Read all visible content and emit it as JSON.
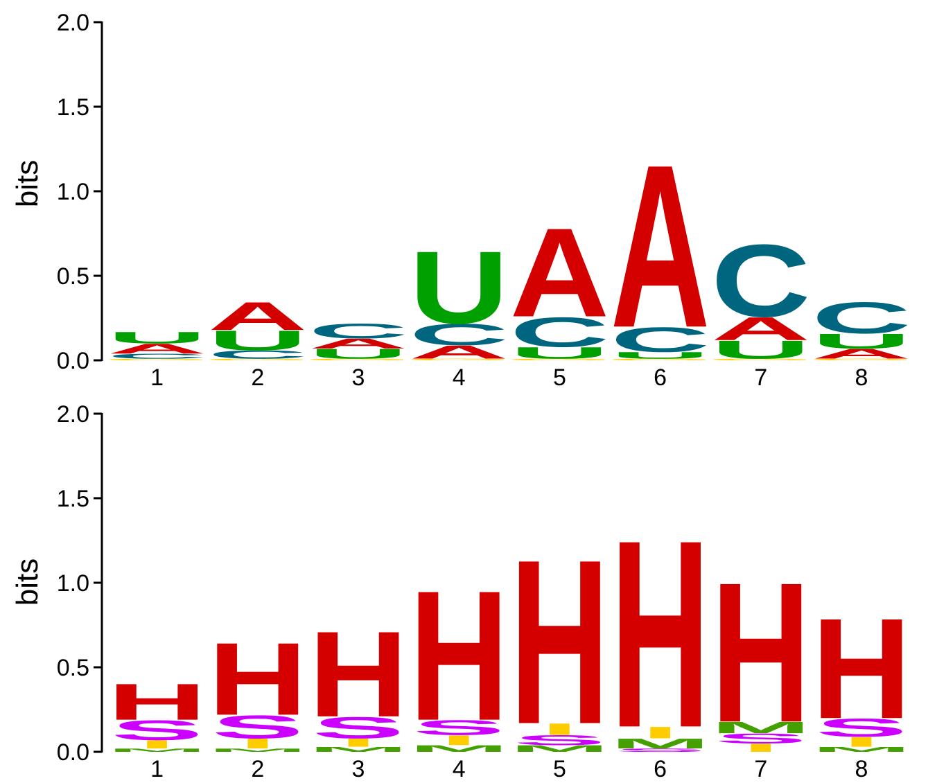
{
  "chart_data": [
    {
      "type": "sequence-logo",
      "ylabel": "bits",
      "ylim": [
        0,
        2.0
      ],
      "yticks": [
        "0.0",
        "0.5",
        "1.0",
        "1.5",
        "2.0"
      ],
      "xticks": [
        "1",
        "2",
        "3",
        "4",
        "5",
        "6",
        "7",
        "8"
      ],
      "colors": {
        "A": "#d40000",
        "C": "#006680",
        "G": "#ffcc00",
        "U": "#00a000"
      },
      "positions": [
        {
          "stack": [
            {
              "letter": "G",
              "bits": 0.01
            },
            {
              "letter": "C",
              "bits": 0.03
            },
            {
              "letter": "A",
              "bits": 0.06
            },
            {
              "letter": "U",
              "bits": 0.07
            }
          ]
        },
        {
          "stack": [
            {
              "letter": "G",
              "bits": 0.01
            },
            {
              "letter": "C",
              "bits": 0.05
            },
            {
              "letter": "U",
              "bits": 0.12
            },
            {
              "letter": "A",
              "bits": 0.17
            }
          ]
        },
        {
          "stack": [
            {
              "letter": "G",
              "bits": 0.01
            },
            {
              "letter": "U",
              "bits": 0.06
            },
            {
              "letter": "A",
              "bits": 0.06
            },
            {
              "letter": "C",
              "bits": 0.09
            }
          ]
        },
        {
          "stack": [
            {
              "letter": "G",
              "bits": 0.01
            },
            {
              "letter": "A",
              "bits": 0.08
            },
            {
              "letter": "C",
              "bits": 0.13
            },
            {
              "letter": "U",
              "bits": 0.44
            }
          ]
        },
        {
          "stack": [
            {
              "letter": "G",
              "bits": 0.01
            },
            {
              "letter": "U",
              "bits": 0.07
            },
            {
              "letter": "C",
              "bits": 0.18
            },
            {
              "letter": "A",
              "bits": 0.54
            }
          ]
        },
        {
          "stack": [
            {
              "letter": "G",
              "bits": 0.01
            },
            {
              "letter": "U",
              "bits": 0.04
            },
            {
              "letter": "C",
              "bits": 0.15
            },
            {
              "letter": "A",
              "bits": 0.99
            }
          ]
        },
        {
          "stack": [
            {
              "letter": "G",
              "bits": 0.01
            },
            {
              "letter": "U",
              "bits": 0.11
            },
            {
              "letter": "A",
              "bits": 0.14
            },
            {
              "letter": "C",
              "bits": 0.44
            }
          ]
        },
        {
          "stack": [
            {
              "letter": "G",
              "bits": 0.01
            },
            {
              "letter": "A",
              "bits": 0.06
            },
            {
              "letter": "U",
              "bits": 0.09
            },
            {
              "letter": "C",
              "bits": 0.19
            }
          ]
        }
      ]
    },
    {
      "type": "sequence-logo",
      "ylabel": "bits",
      "ylim": [
        0,
        2.0
      ],
      "yticks": [
        "0.0",
        "0.5",
        "1.0",
        "1.5",
        "2.0"
      ],
      "xticks": [
        "1",
        "2",
        "3",
        "4",
        "5",
        "6",
        "7",
        "8"
      ],
      "colors": {
        "H": "#d40000",
        "S": "#cc00ff",
        "I": "#ffcc00",
        "M": "#44a000"
      },
      "positions": [
        {
          "stack": [
            {
              "letter": "M",
              "bits": 0.02
            },
            {
              "letter": "I",
              "bits": 0.05
            },
            {
              "letter": "S",
              "bits": 0.12
            },
            {
              "letter": "H",
              "bits": 0.22
            }
          ]
        },
        {
          "stack": [
            {
              "letter": "M",
              "bits": 0.02
            },
            {
              "letter": "I",
              "bits": 0.06
            },
            {
              "letter": "S",
              "bits": 0.14
            },
            {
              "letter": "H",
              "bits": 0.44
            }
          ]
        },
        {
          "stack": [
            {
              "letter": "M",
              "bits": 0.03
            },
            {
              "letter": "I",
              "bits": 0.05
            },
            {
              "letter": "S",
              "bits": 0.13
            },
            {
              "letter": "H",
              "bits": 0.52
            }
          ]
        },
        {
          "stack": [
            {
              "letter": "M",
              "bits": 0.04
            },
            {
              "letter": "I",
              "bits": 0.06
            },
            {
              "letter": "S",
              "bits": 0.09
            },
            {
              "letter": "H",
              "bits": 0.79
            }
          ]
        },
        {
          "stack": [
            {
              "letter": "M",
              "bits": 0.04
            },
            {
              "letter": "S",
              "bits": 0.06
            },
            {
              "letter": "I",
              "bits": 0.07
            },
            {
              "letter": "H",
              "bits": 1.0
            }
          ]
        },
        {
          "stack": [
            {
              "letter": "S",
              "bits": 0.02
            },
            {
              "letter": "M",
              "bits": 0.06
            },
            {
              "letter": "I",
              "bits": 0.07
            },
            {
              "letter": "H",
              "bits": 1.14
            }
          ]
        },
        {
          "stack": [
            {
              "letter": "I",
              "bits": 0.05
            },
            {
              "letter": "S",
              "bits": 0.06
            },
            {
              "letter": "M",
              "bits": 0.07
            },
            {
              "letter": "H",
              "bits": 0.85
            }
          ]
        },
        {
          "stack": [
            {
              "letter": "M",
              "bits": 0.03
            },
            {
              "letter": "I",
              "bits": 0.06
            },
            {
              "letter": "S",
              "bits": 0.11
            },
            {
              "letter": "H",
              "bits": 0.61
            }
          ]
        }
      ]
    }
  ]
}
